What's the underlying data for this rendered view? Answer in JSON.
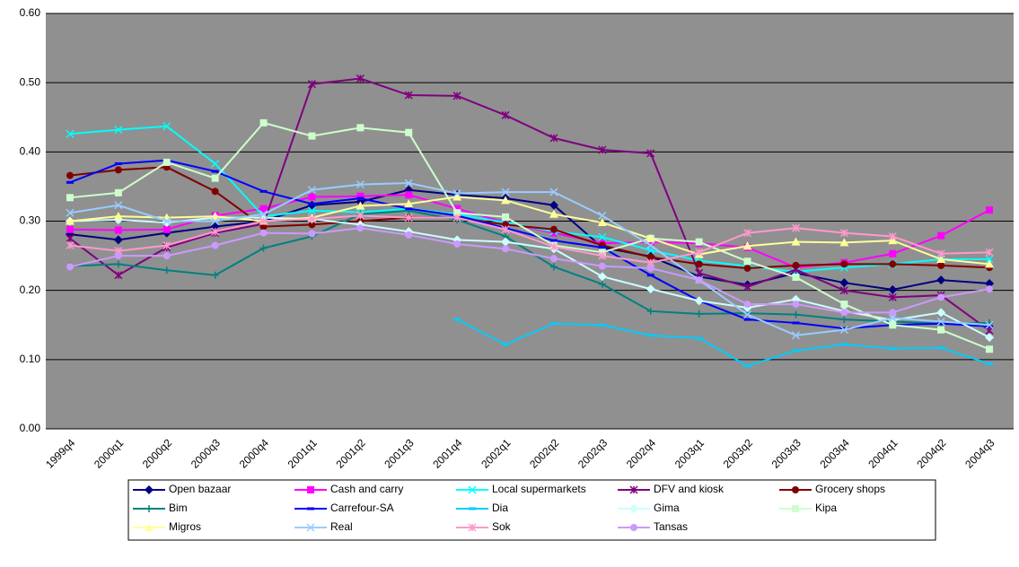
{
  "chart_data": {
    "type": "line",
    "categories": [
      "1999q4",
      "2000q1",
      "2000q2",
      "2000q3",
      "2000q4",
      "2001q1",
      "2001q2",
      "2001q3",
      "2001q4",
      "2002q1",
      "2002q2",
      "2002q3",
      "2002q4",
      "2003q1",
      "2003q2",
      "2003q3",
      "2003q4",
      "2004q1",
      "2004q2",
      "2004q3"
    ],
    "ylim": [
      0,
      0.6
    ],
    "yticks": [
      {
        "value": 0,
        "label": "0.00"
      },
      {
        "value": 0.1,
        "label": "0.10"
      },
      {
        "value": 0.2,
        "label": "0.20"
      },
      {
        "value": 0.3,
        "label": "0.30"
      },
      {
        "value": 0.4,
        "label": "0.40"
      },
      {
        "value": 0.5,
        "label": "0.50"
      },
      {
        "value": 0.6,
        "label": "0.60"
      }
    ],
    "grid": true,
    "legend": "bottom",
    "series": [
      {
        "name": "Open bazaar",
        "color": "#000080",
        "marker": "diamond",
        "values": [
          0.281,
          0.273,
          0.283,
          0.292,
          0.3,
          0.323,
          0.328,
          0.345,
          0.338,
          0.333,
          0.323,
          0.262,
          0.249,
          0.22,
          0.208,
          0.225,
          0.211,
          0.201,
          0.215,
          0.21
        ]
      },
      {
        "name": "Cash and carry",
        "color": "#ff00ff",
        "marker": "square",
        "values": [
          0.288,
          0.287,
          0.288,
          0.308,
          0.318,
          0.335,
          0.336,
          0.338,
          0.318,
          0.298,
          0.283,
          0.268,
          0.27,
          0.268,
          0.262,
          0.233,
          0.24,
          0.253,
          0.279,
          0.316
        ]
      },
      {
        "name": "Local supermarkets",
        "color": "#00ffff",
        "marker": "x",
        "values": [
          0.426,
          0.432,
          0.437,
          0.383,
          0.307,
          0.315,
          0.313,
          0.318,
          0.31,
          0.298,
          0.285,
          0.277,
          0.258,
          0.243,
          0.235,
          0.227,
          0.233,
          0.238,
          0.245,
          0.245
        ]
      },
      {
        "name": "DFV and kiosk",
        "color": "#800080",
        "marker": "star",
        "values": [
          0.275,
          0.222,
          0.262,
          0.283,
          0.296,
          0.498,
          0.506,
          0.482,
          0.481,
          0.453,
          0.42,
          0.403,
          0.398,
          0.225,
          0.205,
          0.23,
          0.2,
          0.19,
          0.193,
          0.142
        ]
      },
      {
        "name": "Grocery shops",
        "color": "#800000",
        "marker": "circle",
        "values": [
          0.366,
          0.374,
          0.378,
          0.343,
          0.292,
          0.295,
          0.3,
          0.305,
          0.305,
          0.295,
          0.288,
          0.265,
          0.248,
          0.238,
          0.232,
          0.236,
          0.238,
          0.238,
          0.236,
          0.233
        ]
      },
      {
        "name": "Bim",
        "color": "#008080",
        "marker": "plus",
        "values": [
          0.235,
          0.238,
          0.229,
          0.222,
          0.261,
          0.278,
          0.31,
          0.315,
          0.302,
          0.278,
          0.234,
          0.209,
          0.17,
          0.166,
          0.167,
          0.165,
          0.158,
          0.155,
          0.152,
          0.153
        ]
      },
      {
        "name": "Carrefour-SA",
        "color": "#0000ff",
        "marker": "dash",
        "values": [
          0.356,
          0.383,
          0.388,
          0.372,
          0.343,
          0.325,
          0.333,
          0.318,
          0.308,
          0.29,
          0.272,
          0.262,
          0.222,
          0.185,
          0.158,
          0.153,
          0.145,
          0.15,
          0.152,
          0.148
        ]
      },
      {
        "name": "Dia",
        "color": "#00ccff",
        "marker": "dash",
        "values": [
          null,
          null,
          null,
          null,
          null,
          null,
          null,
          null,
          0.158,
          0.122,
          0.152,
          0.15,
          0.135,
          0.131,
          0.091,
          0.113,
          0.122,
          0.116,
          0.117,
          0.094
        ]
      },
      {
        "name": "Gima",
        "color": "#ccffff",
        "marker": "diamond",
        "values": [
          0.3,
          0.302,
          0.298,
          0.305,
          0.305,
          0.303,
          0.295,
          0.285,
          0.273,
          0.27,
          0.26,
          0.22,
          0.202,
          0.185,
          0.175,
          0.187,
          0.17,
          0.157,
          0.168,
          0.132
        ]
      },
      {
        "name": "Kipa",
        "color": "#ccffcc",
        "marker": "square",
        "values": [
          0.334,
          0.341,
          0.385,
          0.362,
          0.442,
          0.423,
          0.435,
          0.428,
          0.312,
          0.306,
          0.265,
          0.255,
          0.275,
          0.27,
          0.242,
          0.219,
          0.18,
          0.15,
          0.143,
          0.115
        ]
      },
      {
        "name": "Migros",
        "color": "#ffff99",
        "marker": "triangle",
        "values": [
          0.3,
          0.307,
          0.305,
          0.307,
          0.3,
          0.305,
          0.322,
          0.325,
          0.335,
          0.33,
          0.31,
          0.298,
          0.275,
          0.252,
          0.264,
          0.27,
          0.269,
          0.272,
          0.245,
          0.238
        ]
      },
      {
        "name": "Real",
        "color": "#99ccff",
        "marker": "x",
        "values": [
          0.312,
          0.323,
          0.3,
          0.3,
          0.31,
          0.345,
          0.353,
          0.355,
          0.34,
          0.342,
          0.342,
          0.308,
          0.265,
          0.215,
          0.165,
          0.135,
          0.143,
          0.16,
          0.155,
          0.15
        ]
      },
      {
        "name": "Sok",
        "color": "#ff99cc",
        "marker": "star",
        "values": [
          0.265,
          0.257,
          0.265,
          0.285,
          0.3,
          0.303,
          0.308,
          0.305,
          0.305,
          0.288,
          0.263,
          0.25,
          0.24,
          0.255,
          0.283,
          0.29,
          0.283,
          0.278,
          0.253,
          0.255
        ]
      },
      {
        "name": "Tansas",
        "color": "#cc99ff",
        "marker": "circle",
        "values": [
          0.234,
          0.25,
          0.25,
          0.265,
          0.283,
          0.282,
          0.29,
          0.28,
          0.267,
          0.26,
          0.246,
          0.235,
          0.232,
          0.215,
          0.18,
          0.18,
          0.168,
          0.168,
          0.19,
          0.202
        ]
      }
    ]
  }
}
